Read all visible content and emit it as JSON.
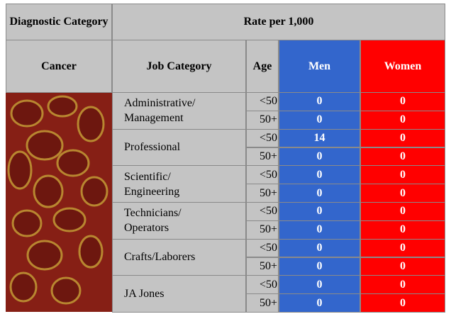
{
  "header": {
    "diagnostic_category": "Diagnostic Category",
    "rate_header": "Rate per 1,000",
    "columns": [
      "Cancer",
      "Job Category",
      "Age",
      "Men",
      "Women"
    ]
  },
  "groups": [
    {
      "job": "Administrative/ Management",
      "rows": [
        {
          "age": "<50",
          "men": 0,
          "women": 0
        },
        {
          "age": "50+",
          "men": 0,
          "women": 0
        }
      ]
    },
    {
      "job": "Professional",
      "rows": [
        {
          "age": "<50",
          "men": 14,
          "women": 0
        },
        {
          "age": "50+",
          "men": 0,
          "women": 0
        }
      ]
    },
    {
      "job": "Scientific/ Engineering",
      "rows": [
        {
          "age": "<50",
          "men": 0,
          "women": 0
        },
        {
          "age": "50+",
          "men": 0,
          "women": 0
        }
      ]
    },
    {
      "job": "Technicians/ Operators",
      "rows": [
        {
          "age": "<50",
          "men": 0,
          "women": 0
        },
        {
          "age": "50+",
          "men": 0,
          "women": 0
        }
      ]
    },
    {
      "job": "Crafts/Laborers",
      "rows": [
        {
          "age": "<50",
          "men": 0,
          "women": 0
        },
        {
          "age": "50+",
          "men": 0,
          "women": 0
        }
      ]
    },
    {
      "job": "JA Jones",
      "rows": [
        {
          "age": "<50",
          "men": 0,
          "women": 0
        },
        {
          "age": "50+",
          "men": 0,
          "women": 0
        }
      ]
    }
  ]
}
